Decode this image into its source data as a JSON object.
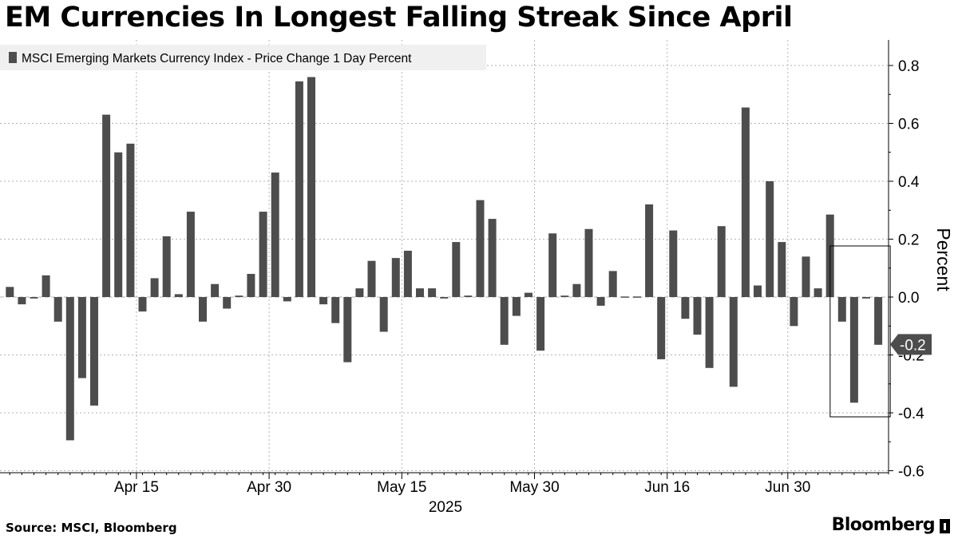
{
  "title": "EM Currencies In Longest Falling Streak Since April",
  "source": "Source: MSCI, Bloomberg",
  "brand": "Bloomberg",
  "colors": {
    "bar": "#4d4d4d",
    "grid": "#b3b3b3",
    "legend_bg": "#f0f0f0",
    "badge": "#4d4d4d"
  },
  "chart_data": {
    "type": "bar",
    "series_name": "MSCI Emerging Markets Currency Index - Price Change 1 Day Percent",
    "ylabel": "Percent",
    "xlabel_year": "2025",
    "ylim": [
      -0.6,
      0.9
    ],
    "yticks": [
      0.8,
      0.6,
      0.4,
      0.2,
      0.0,
      -0.2,
      -0.4,
      -0.6
    ],
    "ytick_labels": [
      "0.8",
      "0.6",
      "0.4",
      "0.2",
      "0.0",
      "-0.2",
      "-0.4",
      "-0.6"
    ],
    "x_ticks": [
      {
        "label": "Apr 15",
        "index": 10.5
      },
      {
        "label": "Apr 30",
        "index": 21.5
      },
      {
        "label": "May 15",
        "index": 32.5
      },
      {
        "label": "May 30",
        "index": 43.5
      },
      {
        "label": "Jun 16",
        "index": 54.5
      },
      {
        "label": "Jun 30",
        "index": 64.5
      }
    ],
    "values": [
      0.035,
      -0.025,
      -0.005,
      0.075,
      -0.085,
      -0.495,
      -0.28,
      -0.375,
      0.63,
      0.5,
      0.53,
      -0.05,
      0.065,
      0.21,
      0.01,
      0.295,
      -0.085,
      0.045,
      -0.04,
      0.005,
      0.08,
      0.295,
      0.43,
      -0.015,
      0.745,
      0.76,
      -0.025,
      -0.09,
      -0.225,
      0.03,
      0.125,
      -0.12,
      0.135,
      0.16,
      0.03,
      0.03,
      -0.005,
      0.19,
      0.005,
      0.335,
      0.27,
      -0.165,
      -0.065,
      0.015,
      -0.185,
      0.22,
      0.005,
      0.045,
      0.235,
      -0.03,
      0.09,
      0.0,
      0.0,
      0.32,
      -0.215,
      0.23,
      -0.075,
      -0.13,
      -0.245,
      0.245,
      -0.31,
      0.655,
      0.04,
      0.4,
      0.19,
      -0.1,
      0.14,
      0.03,
      0.285,
      -0.085,
      -0.365,
      -0.005,
      -0.165
    ],
    "last_value_label": "-0.2",
    "highlight_range": [
      69,
      72
    ]
  }
}
